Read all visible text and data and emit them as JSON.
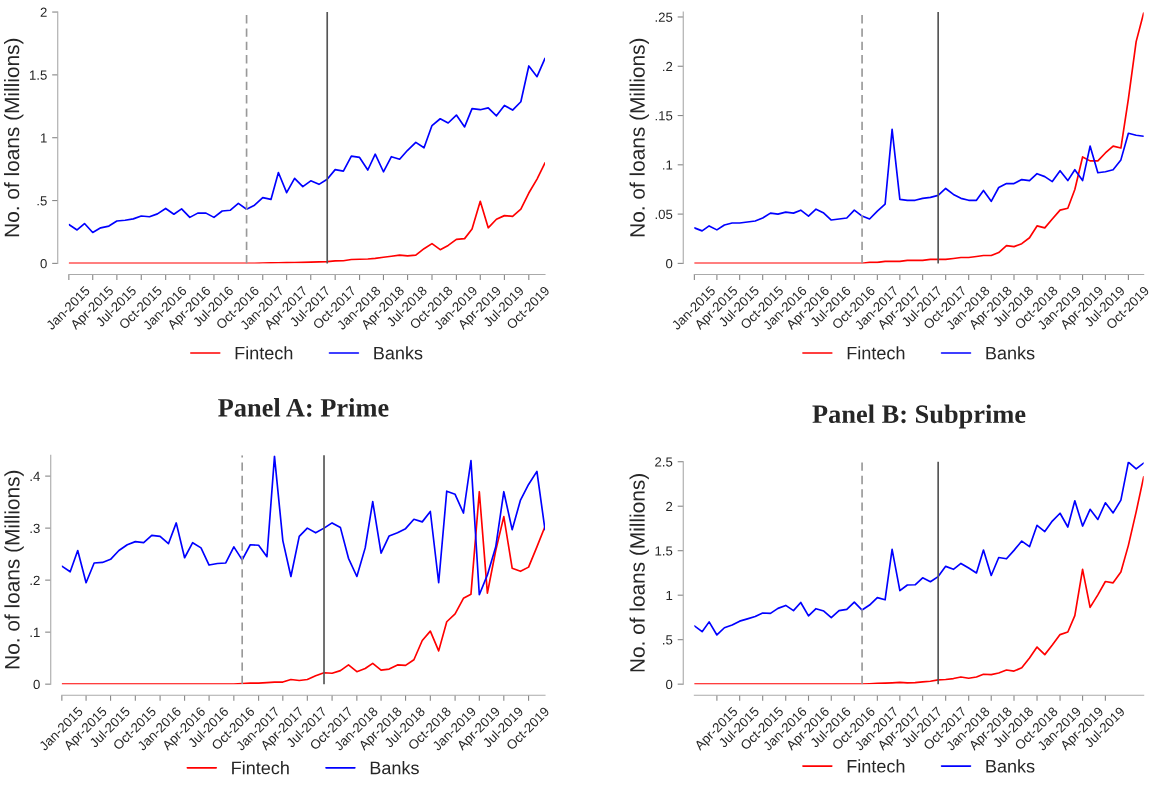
{
  "chart_data": [
    {
      "type": "line",
      "ylabel": "No. of loans (Millions)",
      "x": [
        "2015-01",
        "2015-02",
        "2015-03",
        "2015-04",
        "2015-05",
        "2015-06",
        "2015-07",
        "2015-08",
        "2015-09",
        "2015-10",
        "2015-11",
        "2015-12",
        "2016-01",
        "2016-02",
        "2016-03",
        "2016-04",
        "2016-05",
        "2016-06",
        "2016-07",
        "2016-08",
        "2016-09",
        "2016-10",
        "2016-11",
        "2016-12",
        "2017-01",
        "2017-02",
        "2017-03",
        "2017-04",
        "2017-05",
        "2017-06",
        "2017-07",
        "2017-08",
        "2017-09",
        "2017-10",
        "2017-11",
        "2017-12",
        "2018-01",
        "2018-02",
        "2018-03",
        "2018-04",
        "2018-05",
        "2018-06",
        "2018-07",
        "2018-08",
        "2018-09",
        "2018-10",
        "2018-11",
        "2018-12",
        "2019-01",
        "2019-02",
        "2019-03",
        "2019-04",
        "2019-05",
        "2019-06",
        "2019-07",
        "2019-08",
        "2019-09",
        "2019-10",
        "2019-11",
        "2019-12"
      ],
      "series": [
        {
          "name": "Fintech",
          "color": "#ff0000",
          "values": [
            0,
            0,
            0,
            0,
            0,
            0,
            0,
            0,
            0,
            0,
            0,
            0,
            0,
            0,
            0,
            0,
            0,
            0,
            0,
            0,
            0,
            0,
            0,
            0,
            0.003,
            0.004,
            0.005,
            0.006,
            0.007,
            0.008,
            0.01,
            0.012,
            0.014,
            0.02,
            0.021,
            0.031,
            0.033,
            0.035,
            0.04,
            0.049,
            0.057,
            0.066,
            0.06,
            0.066,
            0.117,
            0.157,
            0.109,
            0.143,
            0.191,
            0.197,
            0.274,
            0.494,
            0.283,
            0.351,
            0.38,
            0.374,
            0.431,
            0.56,
            0.671,
            0.8
          ]
        },
        {
          "name": "Banks",
          "color": "#0000ff",
          "values": [
            0.309,
            0.266,
            0.317,
            0.246,
            0.283,
            0.297,
            0.337,
            0.343,
            0.354,
            0.377,
            0.371,
            0.394,
            0.437,
            0.391,
            0.434,
            0.366,
            0.4,
            0.4,
            0.366,
            0.417,
            0.423,
            0.477,
            0.431,
            0.463,
            0.523,
            0.509,
            0.723,
            0.563,
            0.677,
            0.611,
            0.657,
            0.629,
            0.669,
            0.746,
            0.734,
            0.854,
            0.843,
            0.743,
            0.869,
            0.729,
            0.849,
            0.829,
            0.9,
            0.963,
            0.92,
            1.097,
            1.151,
            1.117,
            1.18,
            1.086,
            1.231,
            1.223,
            1.237,
            1.174,
            1.257,
            1.22,
            1.286,
            1.571,
            1.486,
            1.631
          ]
        }
      ],
      "xlim": [
        "2015-01",
        "2019-12"
      ],
      "xticks": [
        {
          "value": "2015-01",
          "label": "Jan-2015"
        },
        {
          "value": "2015-04",
          "label": "Apr-2015"
        },
        {
          "value": "2015-07",
          "label": "Jul-2015"
        },
        {
          "value": "2015-10",
          "label": "Oct-2015"
        },
        {
          "value": "2016-01",
          "label": "Jan-2016"
        },
        {
          "value": "2016-04",
          "label": "Apr-2016"
        },
        {
          "value": "2016-07",
          "label": "Jul-2016"
        },
        {
          "value": "2016-10",
          "label": "Oct-2016"
        },
        {
          "value": "2017-01",
          "label": "Jan-2017"
        },
        {
          "value": "2017-04",
          "label": "Apr-2017"
        },
        {
          "value": "2017-07",
          "label": "Jul-2017"
        },
        {
          "value": "2017-10",
          "label": "Oct-2017"
        },
        {
          "value": "2018-01",
          "label": "Jan-2018"
        },
        {
          "value": "2018-04",
          "label": "Apr-2018"
        },
        {
          "value": "2018-07",
          "label": "Jul-2018"
        },
        {
          "value": "2018-10",
          "label": "Oct-2018"
        },
        {
          "value": "2019-01",
          "label": "Jan-2019"
        },
        {
          "value": "2019-04",
          "label": "Apr-2019"
        },
        {
          "value": "2019-07",
          "label": "Jul-2019"
        },
        {
          "value": "2019-10",
          "label": "Oct-2019"
        }
      ],
      "ylim": [
        0,
        2
      ],
      "yticks": [
        0,
        {
          "value": 0.5,
          "label": ".5"
        },
        1,
        1.5,
        2
      ],
      "ref_lines": [
        {
          "axis": "x",
          "value": "2016-11",
          "color": "#999999",
          "line_style": "dashed"
        },
        {
          "axis": "x",
          "value": "2017-09",
          "color": "#555555",
          "line_style": "solid"
        }
      ],
      "grid": false,
      "legend": "bottom",
      "marker": "none",
      "line_style": "solid"
    },
    {
      "type": "line",
      "ylabel": "No. of loans (Millions)",
      "x": [
        "2015-01",
        "2015-02",
        "2015-03",
        "2015-04",
        "2015-05",
        "2015-06",
        "2015-07",
        "2015-08",
        "2015-09",
        "2015-10",
        "2015-11",
        "2015-12",
        "2016-01",
        "2016-02",
        "2016-03",
        "2016-04",
        "2016-05",
        "2016-06",
        "2016-07",
        "2016-08",
        "2016-09",
        "2016-10",
        "2016-11",
        "2016-12",
        "2017-01",
        "2017-02",
        "2017-03",
        "2017-04",
        "2017-05",
        "2017-06",
        "2017-07",
        "2017-08",
        "2017-09",
        "2017-10",
        "2017-11",
        "2017-12",
        "2018-01",
        "2018-02",
        "2018-03",
        "2018-04",
        "2018-05",
        "2018-06",
        "2018-07",
        "2018-08",
        "2018-09",
        "2018-10",
        "2018-11",
        "2018-12",
        "2019-01",
        "2019-02",
        "2019-03",
        "2019-04",
        "2019-05",
        "2019-06",
        "2019-07",
        "2019-08",
        "2019-09",
        "2019-10",
        "2019-11",
        "2019-12"
      ],
      "series": [
        {
          "name": "Fintech",
          "color": "#ff0000",
          "values": [
            0,
            0,
            0,
            0,
            0,
            0,
            0,
            0,
            0,
            0,
            0,
            0,
            0,
            0,
            0,
            0,
            0,
            0,
            0,
            0,
            0,
            0,
            0,
            0.001,
            0.001,
            0.002,
            0.002,
            0.002,
            0.003,
            0.003,
            0.003,
            0.004,
            0.004,
            0.004,
            0.005,
            0.006,
            0.006,
            0.007,
            0.008,
            0.008,
            0.011,
            0.018,
            0.017,
            0.02,
            0.026,
            0.038,
            0.036,
            0.045,
            0.054,
            0.056,
            0.075,
            0.108,
            0.104,
            0.104,
            0.112,
            0.119,
            0.117,
            0.167,
            0.225,
            0.254
          ]
        },
        {
          "name": "Banks",
          "color": "#0000ff",
          "values": [
            0.036,
            0.033,
            0.038,
            0.034,
            0.039,
            0.041,
            0.041,
            0.042,
            0.043,
            0.046,
            0.051,
            0.05,
            0.052,
            0.051,
            0.054,
            0.048,
            0.055,
            0.051,
            0.044,
            0.045,
            0.046,
            0.054,
            0.048,
            0.045,
            0.053,
            0.06,
            0.136,
            0.065,
            0.064,
            0.064,
            0.066,
            0.067,
            0.069,
            0.076,
            0.07,
            0.066,
            0.064,
            0.064,
            0.074,
            0.063,
            0.077,
            0.081,
            0.081,
            0.085,
            0.084,
            0.091,
            0.088,
            0.083,
            0.094,
            0.084,
            0.095,
            0.084,
            0.119,
            0.092,
            0.093,
            0.095,
            0.105,
            0.132,
            0.13,
            0.129
          ]
        }
      ],
      "xlim": [
        "2015-01",
        "2019-12"
      ],
      "xticks": [
        {
          "value": "2015-01",
          "label": "Jan-2015"
        },
        {
          "value": "2015-04",
          "label": "Apr-2015"
        },
        {
          "value": "2015-07",
          "label": "Jul-2015"
        },
        {
          "value": "2015-10",
          "label": "Oct-2015"
        },
        {
          "value": "2016-01",
          "label": "Jan-2016"
        },
        {
          "value": "2016-04",
          "label": "Apr-2016"
        },
        {
          "value": "2016-07",
          "label": "Jul-2016"
        },
        {
          "value": "2016-10",
          "label": "Oct-2016"
        },
        {
          "value": "2017-01",
          "label": "Jan-2017"
        },
        {
          "value": "2017-04",
          "label": "Apr-2017"
        },
        {
          "value": "2017-07",
          "label": "Jul-2017"
        },
        {
          "value": "2017-10",
          "label": "Oct-2017"
        },
        {
          "value": "2018-01",
          "label": "Jan-2018"
        },
        {
          "value": "2018-04",
          "label": "Apr-2018"
        },
        {
          "value": "2018-07",
          "label": "Jul-2018"
        },
        {
          "value": "2018-10",
          "label": "Oct-2018"
        },
        {
          "value": "2019-01",
          "label": "Jan-2019"
        },
        {
          "value": "2019-04",
          "label": "Apr-2019"
        },
        {
          "value": "2019-07",
          "label": "Jul-2019"
        },
        {
          "value": "2019-10",
          "label": "Oct-2019"
        }
      ],
      "ylim": [
        0,
        0.255
      ],
      "yticks": [
        0,
        {
          "value": 0.05,
          "label": ".05"
        },
        {
          "value": 0.1,
          "label": ".1"
        },
        {
          "value": 0.15,
          "label": ".15"
        },
        {
          "value": 0.2,
          "label": ".2"
        },
        {
          "value": 0.25,
          "label": ".25"
        }
      ],
      "ref_lines": [
        {
          "axis": "x",
          "value": "2016-11",
          "color": "#999999",
          "line_style": "dashed"
        },
        {
          "axis": "x",
          "value": "2017-09",
          "color": "#555555",
          "line_style": "solid"
        }
      ],
      "grid": false,
      "legend": "bottom",
      "marker": "none",
      "line_style": "solid"
    },
    {
      "type": "line",
      "title": "Panel A: Prime",
      "ylabel": "No. of loans (Millions)",
      "x": [
        "2015-01",
        "2015-02",
        "2015-03",
        "2015-04",
        "2015-05",
        "2015-06",
        "2015-07",
        "2015-08",
        "2015-09",
        "2015-10",
        "2015-11",
        "2015-12",
        "2016-01",
        "2016-02",
        "2016-03",
        "2016-04",
        "2016-05",
        "2016-06",
        "2016-07",
        "2016-08",
        "2016-09",
        "2016-10",
        "2016-11",
        "2016-12",
        "2017-01",
        "2017-02",
        "2017-03",
        "2017-04",
        "2017-05",
        "2017-06",
        "2017-07",
        "2017-08",
        "2017-09",
        "2017-10",
        "2017-11",
        "2017-12",
        "2018-01",
        "2018-02",
        "2018-03",
        "2018-04",
        "2018-05",
        "2018-06",
        "2018-07",
        "2018-08",
        "2018-09",
        "2018-10",
        "2018-11",
        "2018-12",
        "2019-01",
        "2019-02",
        "2019-03",
        "2019-04",
        "2019-05",
        "2019-06",
        "2019-07",
        "2019-08",
        "2019-09",
        "2019-10",
        "2019-11",
        "2019-12"
      ],
      "series": [
        {
          "name": "Fintech",
          "color": "#ff0000",
          "values": [
            0,
            0,
            0,
            0,
            0,
            0,
            0,
            0,
            0,
            0,
            0,
            0,
            0,
            0,
            0,
            0,
            0,
            0,
            0,
            0,
            0,
            0,
            0.001,
            0.002,
            0.002,
            0.003,
            0.004,
            0.004,
            0.009,
            0.007,
            0.009,
            0.016,
            0.022,
            0.021,
            0.026,
            0.037,
            0.024,
            0.03,
            0.04,
            0.027,
            0.029,
            0.037,
            0.036,
            0.047,
            0.084,
            0.102,
            0.064,
            0.12,
            0.135,
            0.165,
            0.173,
            0.37,
            0.175,
            0.257,
            0.322,
            0.223,
            0.217,
            0.225,
            0.264,
            0.303
          ]
        },
        {
          "name": "Banks",
          "color": "#0000ff",
          "values": [
            0.227,
            0.216,
            0.257,
            0.195,
            0.233,
            0.234,
            0.24,
            0.257,
            0.268,
            0.274,
            0.272,
            0.286,
            0.284,
            0.27,
            0.31,
            0.243,
            0.272,
            0.262,
            0.229,
            0.232,
            0.233,
            0.264,
            0.239,
            0.268,
            0.267,
            0.245,
            0.438,
            0.276,
            0.207,
            0.284,
            0.3,
            0.291,
            0.3,
            0.31,
            0.301,
            0.242,
            0.207,
            0.262,
            0.351,
            0.252,
            0.285,
            0.291,
            0.299,
            0.317,
            0.312,
            0.332,
            0.195,
            0.371,
            0.365,
            0.329,
            0.43,
            0.172,
            0.21,
            0.264,
            0.37,
            0.297,
            0.354,
            0.384,
            0.409,
            0.297
          ]
        }
      ],
      "xlim": [
        "2015-01",
        "2019-12"
      ],
      "xticks": [
        {
          "value": "2015-01",
          "label": "Jan-2015"
        },
        {
          "value": "2015-04",
          "label": "Apr-2015"
        },
        {
          "value": "2015-07",
          "label": "Jul-2015"
        },
        {
          "value": "2015-10",
          "label": "Oct-2015"
        },
        {
          "value": "2016-01",
          "label": "Jan-2016"
        },
        {
          "value": "2016-04",
          "label": "Apr-2016"
        },
        {
          "value": "2016-07",
          "label": "Jul-2016"
        },
        {
          "value": "2016-10",
          "label": "Oct-2016"
        },
        {
          "value": "2017-01",
          "label": "Jan-2017"
        },
        {
          "value": "2017-04",
          "label": "Apr-2017"
        },
        {
          "value": "2017-07",
          "label": "Jul-2017"
        },
        {
          "value": "2017-10",
          "label": "Oct-2017"
        },
        {
          "value": "2018-01",
          "label": "Jan-2018"
        },
        {
          "value": "2018-04",
          "label": "Apr-2018"
        },
        {
          "value": "2018-07",
          "label": "Jul-2018"
        },
        {
          "value": "2018-10",
          "label": "Oct-2018"
        },
        {
          "value": "2019-01",
          "label": "Jan-2019"
        },
        {
          "value": "2019-04",
          "label": "Apr-2019"
        },
        {
          "value": "2019-07",
          "label": "Jul-2019"
        },
        {
          "value": "2019-10",
          "label": "Oct-2019"
        }
      ],
      "ylim": [
        0,
        0.44
      ],
      "yticks": [
        0,
        {
          "value": 0.1,
          "label": ".1"
        },
        {
          "value": 0.2,
          "label": ".2"
        },
        {
          "value": 0.3,
          "label": ".3"
        },
        {
          "value": 0.4,
          "label": ".4"
        }
      ],
      "ref_lines": [
        {
          "axis": "x",
          "value": "2016-11",
          "color": "#999999",
          "line_style": "dashed"
        },
        {
          "axis": "x",
          "value": "2017-09",
          "color": "#555555",
          "line_style": "solid"
        }
      ],
      "grid": false,
      "legend": "bottom",
      "marker": "none",
      "line_style": "solid"
    },
    {
      "type": "line",
      "title": "Panel B: Subprime",
      "ylabel": "No. of loans (Millions)",
      "x": [
        "2015-01",
        "2015-02",
        "2015-03",
        "2015-04",
        "2015-05",
        "2015-06",
        "2015-07",
        "2015-08",
        "2015-09",
        "2015-10",
        "2015-11",
        "2015-12",
        "2016-01",
        "2016-02",
        "2016-03",
        "2016-04",
        "2016-05",
        "2016-06",
        "2016-07",
        "2016-08",
        "2016-09",
        "2016-10",
        "2016-11",
        "2016-12",
        "2017-01",
        "2017-02",
        "2017-03",
        "2017-04",
        "2017-05",
        "2017-06",
        "2017-07",
        "2017-08",
        "2017-09",
        "2017-10",
        "2017-11",
        "2017-12",
        "2018-01",
        "2018-02",
        "2018-03",
        "2018-04",
        "2018-05",
        "2018-06",
        "2018-07",
        "2018-08",
        "2018-09",
        "2018-10",
        "2018-11",
        "2018-12",
        "2019-01",
        "2019-02",
        "2019-03",
        "2019-04",
        "2019-05",
        "2019-06",
        "2019-07",
        "2019-08",
        "2019-09",
        "2019-10",
        "2019-11",
        "2019-12"
      ],
      "series": [
        {
          "name": "Fintech",
          "color": "#ff0000",
          "values": [
            0,
            0,
            0,
            0,
            0,
            0,
            0,
            0,
            0,
            0,
            0,
            0,
            0,
            0,
            0,
            0,
            0,
            0,
            0,
            0,
            0,
            0,
            0,
            0.005,
            0.01,
            0.012,
            0.015,
            0.02,
            0.015,
            0.018,
            0.026,
            0.033,
            0.048,
            0.052,
            0.063,
            0.081,
            0.066,
            0.081,
            0.111,
            0.107,
            0.125,
            0.159,
            0.147,
            0.184,
            0.295,
            0.417,
            0.332,
            0.439,
            0.557,
            0.586,
            0.771,
            1.291,
            0.863,
            1.003,
            1.154,
            1.139,
            1.261,
            1.56,
            1.936,
            2.33
          ]
        },
        {
          "name": "Banks",
          "color": "#0000ff",
          "values": [
            0.656,
            0.59,
            0.7,
            0.553,
            0.634,
            0.664,
            0.708,
            0.734,
            0.76,
            0.8,
            0.796,
            0.852,
            0.885,
            0.826,
            0.918,
            0.767,
            0.848,
            0.822,
            0.749,
            0.826,
            0.841,
            0.922,
            0.833,
            0.889,
            0.973,
            0.948,
            1.515,
            1.051,
            1.114,
            1.117,
            1.195,
            1.151,
            1.209,
            1.324,
            1.291,
            1.357,
            1.305,
            1.25,
            1.508,
            1.221,
            1.423,
            1.409,
            1.504,
            1.608,
            1.545,
            1.785,
            1.715,
            1.833,
            1.921,
            1.766,
            2.061,
            1.777,
            1.965,
            1.851,
            2.039,
            1.925,
            2.069,
            2.496,
            2.419,
            2.485
          ]
        }
      ],
      "xlim": [
        "2015-01",
        "2019-12"
      ],
      "xticks": [
        {
          "value": "2015-04",
          "label": "Apr-2015"
        },
        {
          "value": "2015-07",
          "label": "Jul-2015"
        },
        {
          "value": "2015-10",
          "label": "Oct-2015"
        },
        {
          "value": "2016-01",
          "label": "Jan-2016"
        },
        {
          "value": "2016-04",
          "label": "Apr-2016"
        },
        {
          "value": "2016-07",
          "label": "Jul-2016"
        },
        {
          "value": "2016-10",
          "label": "Oct-2016"
        },
        {
          "value": "2017-01",
          "label": "Jan-2017"
        },
        {
          "value": "2017-04",
          "label": "Apr-2017"
        },
        {
          "value": "2017-07",
          "label": "Jul-2017"
        },
        {
          "value": "2017-10",
          "label": "Oct-2017"
        },
        {
          "value": "2018-01",
          "label": "Jan-2018"
        },
        {
          "value": "2018-04",
          "label": "Apr-2018"
        },
        {
          "value": "2018-07",
          "label": "Jul-2018"
        },
        {
          "value": "2018-10",
          "label": "Oct-2018"
        },
        {
          "value": "2019-01",
          "label": "Jan-2019"
        },
        {
          "value": "2019-04",
          "label": "Apr-2019"
        },
        {
          "value": "2019-07",
          "label": "Jul-2019"
        }
      ],
      "ylim": [
        0,
        2.5
      ],
      "yticks": [
        0,
        {
          "value": 0.5,
          "label": ".5"
        },
        1,
        1.5,
        2,
        2.5
      ],
      "ref_lines": [
        {
          "axis": "x",
          "value": "2016-11",
          "color": "#999999",
          "line_style": "dashed"
        },
        {
          "axis": "x",
          "value": "2017-09",
          "color": "#555555",
          "line_style": "solid"
        }
      ],
      "grid": false,
      "legend": "bottom",
      "marker": "none",
      "line_style": "solid"
    }
  ]
}
